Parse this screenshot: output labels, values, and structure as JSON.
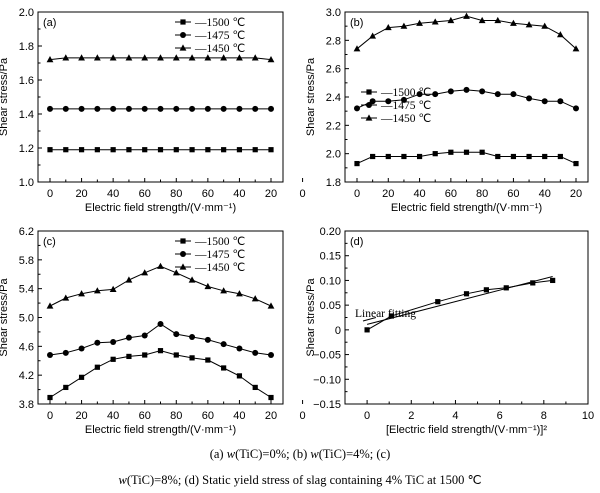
{
  "chart_data": [
    {
      "id": "a",
      "type": "line",
      "panel_label": "(a)",
      "xlabel": "Electric field strength/(V·mm⁻¹)",
      "ylabel": "Shear stress/Pa",
      "categories": [
        "0",
        "10",
        "20",
        "30",
        "40",
        "50",
        "60",
        "70",
        "60",
        "50",
        "40",
        "30",
        "20",
        "10",
        "0"
      ],
      "tick_labels": [
        "0",
        "20",
        "40",
        "60",
        "80",
        "60",
        "40",
        "20",
        "0"
      ],
      "ylim": [
        1.0,
        2.0
      ],
      "yticks": [
        "1.0",
        "1.2",
        "1.4",
        "1.6",
        "1.8",
        "2.0"
      ],
      "legend_position": "top-right",
      "series": [
        {
          "name": "1500 ℃",
          "marker": "square",
          "values": [
            1.19,
            1.19,
            1.19,
            1.19,
            1.19,
            1.19,
            1.19,
            1.19,
            1.19,
            1.19,
            1.19,
            1.19,
            1.19,
            1.19,
            1.19
          ]
        },
        {
          "name": "1475 ℃",
          "marker": "circle",
          "values": [
            1.43,
            1.43,
            1.43,
            1.43,
            1.43,
            1.43,
            1.43,
            1.43,
            1.43,
            1.43,
            1.43,
            1.43,
            1.43,
            1.43,
            1.43
          ]
        },
        {
          "name": "1450 ℃",
          "marker": "triangle",
          "values": [
            1.72,
            1.73,
            1.73,
            1.73,
            1.73,
            1.73,
            1.73,
            1.73,
            1.73,
            1.73,
            1.73,
            1.73,
            1.73,
            1.73,
            1.72
          ]
        }
      ]
    },
    {
      "id": "b",
      "type": "line",
      "panel_label": "(b)",
      "xlabel": "Electric field strength/(V·mm⁻¹)",
      "ylabel": "Shear stress/Pa",
      "categories": [
        "0",
        "10",
        "20",
        "30",
        "40",
        "50",
        "60",
        "70",
        "60",
        "50",
        "40",
        "30",
        "20",
        "10",
        "0"
      ],
      "tick_labels": [
        "0",
        "20",
        "40",
        "60",
        "80",
        "60",
        "40",
        "20",
        "0"
      ],
      "ylim": [
        1.8,
        3.0
      ],
      "yticks": [
        "1.8",
        "2.0",
        "2.2",
        "2.4",
        "2.6",
        "2.8",
        "3.0"
      ],
      "legend_position": "center-left",
      "series": [
        {
          "name": "1500 ℃",
          "marker": "square",
          "values": [
            1.93,
            1.98,
            1.98,
            1.98,
            1.98,
            2.0,
            2.01,
            2.01,
            2.01,
            1.98,
            1.98,
            1.98,
            1.98,
            1.98,
            1.93
          ]
        },
        {
          "name": "1475 ℃",
          "marker": "circle",
          "values": [
            2.32,
            2.37,
            2.37,
            2.38,
            2.42,
            2.42,
            2.44,
            2.45,
            2.44,
            2.42,
            2.42,
            2.39,
            2.37,
            2.37,
            2.32
          ]
        },
        {
          "name": "1450 ℃",
          "marker": "triangle",
          "values": [
            2.74,
            2.83,
            2.89,
            2.9,
            2.92,
            2.93,
            2.94,
            2.97,
            2.94,
            2.94,
            2.92,
            2.91,
            2.9,
            2.84,
            2.74
          ]
        }
      ]
    },
    {
      "id": "c",
      "type": "line",
      "panel_label": "(c)",
      "xlabel": "Electric field strength/(V·mm⁻¹)",
      "ylabel": "Shear stress/Pa",
      "categories": [
        "0",
        "10",
        "20",
        "30",
        "40",
        "50",
        "60",
        "70",
        "60",
        "50",
        "40",
        "30",
        "20",
        "10",
        "0"
      ],
      "tick_labels": [
        "0",
        "20",
        "40",
        "60",
        "80",
        "60",
        "40",
        "20",
        "0"
      ],
      "ylim": [
        3.8,
        6.2
      ],
      "yticks": [
        "3.8",
        "4.2",
        "4.6",
        "5.0",
        "5.4",
        "5.8",
        "6.2"
      ],
      "legend_position": "top-right",
      "series": [
        {
          "name": "1500 ℃",
          "marker": "square",
          "values": [
            3.89,
            4.03,
            4.17,
            4.31,
            4.42,
            4.46,
            4.48,
            4.54,
            4.48,
            4.44,
            4.41,
            4.3,
            4.19,
            4.03,
            3.89
          ]
        },
        {
          "name": "1475 ℃",
          "marker": "circle",
          "values": [
            4.48,
            4.51,
            4.57,
            4.65,
            4.66,
            4.72,
            4.75,
            4.91,
            4.77,
            4.73,
            4.69,
            4.63,
            4.57,
            4.51,
            4.48
          ]
        },
        {
          "name": "1450 ℃",
          "marker": "triangle",
          "values": [
            5.16,
            5.27,
            5.33,
            5.37,
            5.39,
            5.52,
            5.62,
            5.71,
            5.62,
            5.52,
            5.43,
            5.37,
            5.33,
            5.26,
            5.16
          ]
        }
      ]
    },
    {
      "id": "d",
      "type": "scatter",
      "panel_label": "(d)",
      "xlabel": "[Electric field strength/(V·mm⁻¹)]²",
      "ylabel": "Shear stress/Pa",
      "xlim": [
        -1,
        10
      ],
      "xticks": [
        "0",
        "2",
        "4",
        "6",
        "8",
        "10"
      ],
      "ylim": [
        -0.15,
        0.2
      ],
      "yticks": [
        "−0.15",
        "−0.10",
        "−0.05",
        "0",
        "0.05",
        "0.10",
        "0.15",
        "0.20"
      ],
      "annotation": "Linear fitting",
      "series": [
        {
          "marker": "square",
          "x": [
            0,
            1.1,
            3.2,
            4.5,
            5.4,
            6.3,
            7.5,
            8.4
          ],
          "y": [
            0,
            0.028,
            0.057,
            0.073,
            0.081,
            0.085,
            0.095,
            0.1
          ]
        }
      ],
      "fit_line": {
        "x": [
          0,
          8.4
        ],
        "y": [
          0.011,
          0.108
        ]
      },
      "fit_line_2": {
        "x": [
          0,
          8.4
        ],
        "y": [
          0.018,
          0.104
        ]
      }
    }
  ],
  "caption": {
    "line1_a": "(a)  ",
    "line1_b": "w",
    "line1_c": "(TiC)=0%;  (b)  ",
    "line1_d": "w",
    "line1_e": "(TiC)=4%;  (c)",
    "line2_a": "w",
    "line2_b": "(TiC)=8%; (d) Static yield stress of slag containing 4% TiC at 1500 ℃"
  }
}
